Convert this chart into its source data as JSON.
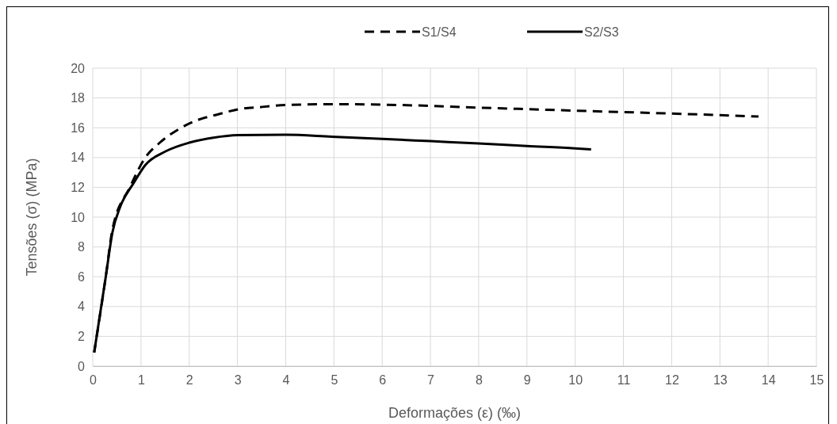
{
  "chart_data": {
    "type": "line",
    "xlabel": "Deformações (ε) (‰)",
    "ylabel": "Tensões (σ) (MPa)",
    "xlim": [
      0,
      15
    ],
    "xticks": [
      0,
      1,
      2,
      3,
      4,
      5,
      6,
      7,
      8,
      9,
      10,
      11,
      12,
      13,
      14,
      15
    ],
    "ylim": [
      0,
      20
    ],
    "yticks": [
      0,
      2,
      4,
      6,
      8,
      10,
      12,
      14,
      16,
      18,
      20
    ],
    "grid": true,
    "legend": "top",
    "series": [
      {
        "name": "S1/S4",
        "color": "#000000",
        "line_style": "dashed",
        "x": [
          0.03,
          0.27,
          0.41,
          0.77,
          1.09,
          1.39,
          1.78,
          2.16,
          2.6,
          3.03,
          3.52,
          4,
          4.95,
          6,
          7,
          8,
          9,
          10,
          11,
          12,
          13,
          13.8
        ],
        "values": [
          0.92,
          6,
          9.2,
          12,
          14,
          15,
          15.9,
          16.5,
          16.9,
          17.25,
          17.4,
          17.53,
          17.58,
          17.55,
          17.47,
          17.35,
          17.25,
          17.15,
          17.05,
          16.95,
          16.85,
          16.75
        ]
      },
      {
        "name": "S2/S3",
        "color": "#000000",
        "line_style": "solid",
        "x": [
          0.03,
          0.27,
          0.41,
          0.57,
          0.85,
          1.09,
          1.5,
          2,
          2.5,
          3,
          4,
          4.95,
          6,
          7,
          8,
          9,
          10,
          10.33
        ],
        "values": [
          0.92,
          6,
          9,
          10.7,
          12.3,
          13.5,
          14.4,
          15,
          15.33,
          15.5,
          15.53,
          15.4,
          15.25,
          15.1,
          14.95,
          14.78,
          14.62,
          14.55
        ]
      }
    ]
  }
}
